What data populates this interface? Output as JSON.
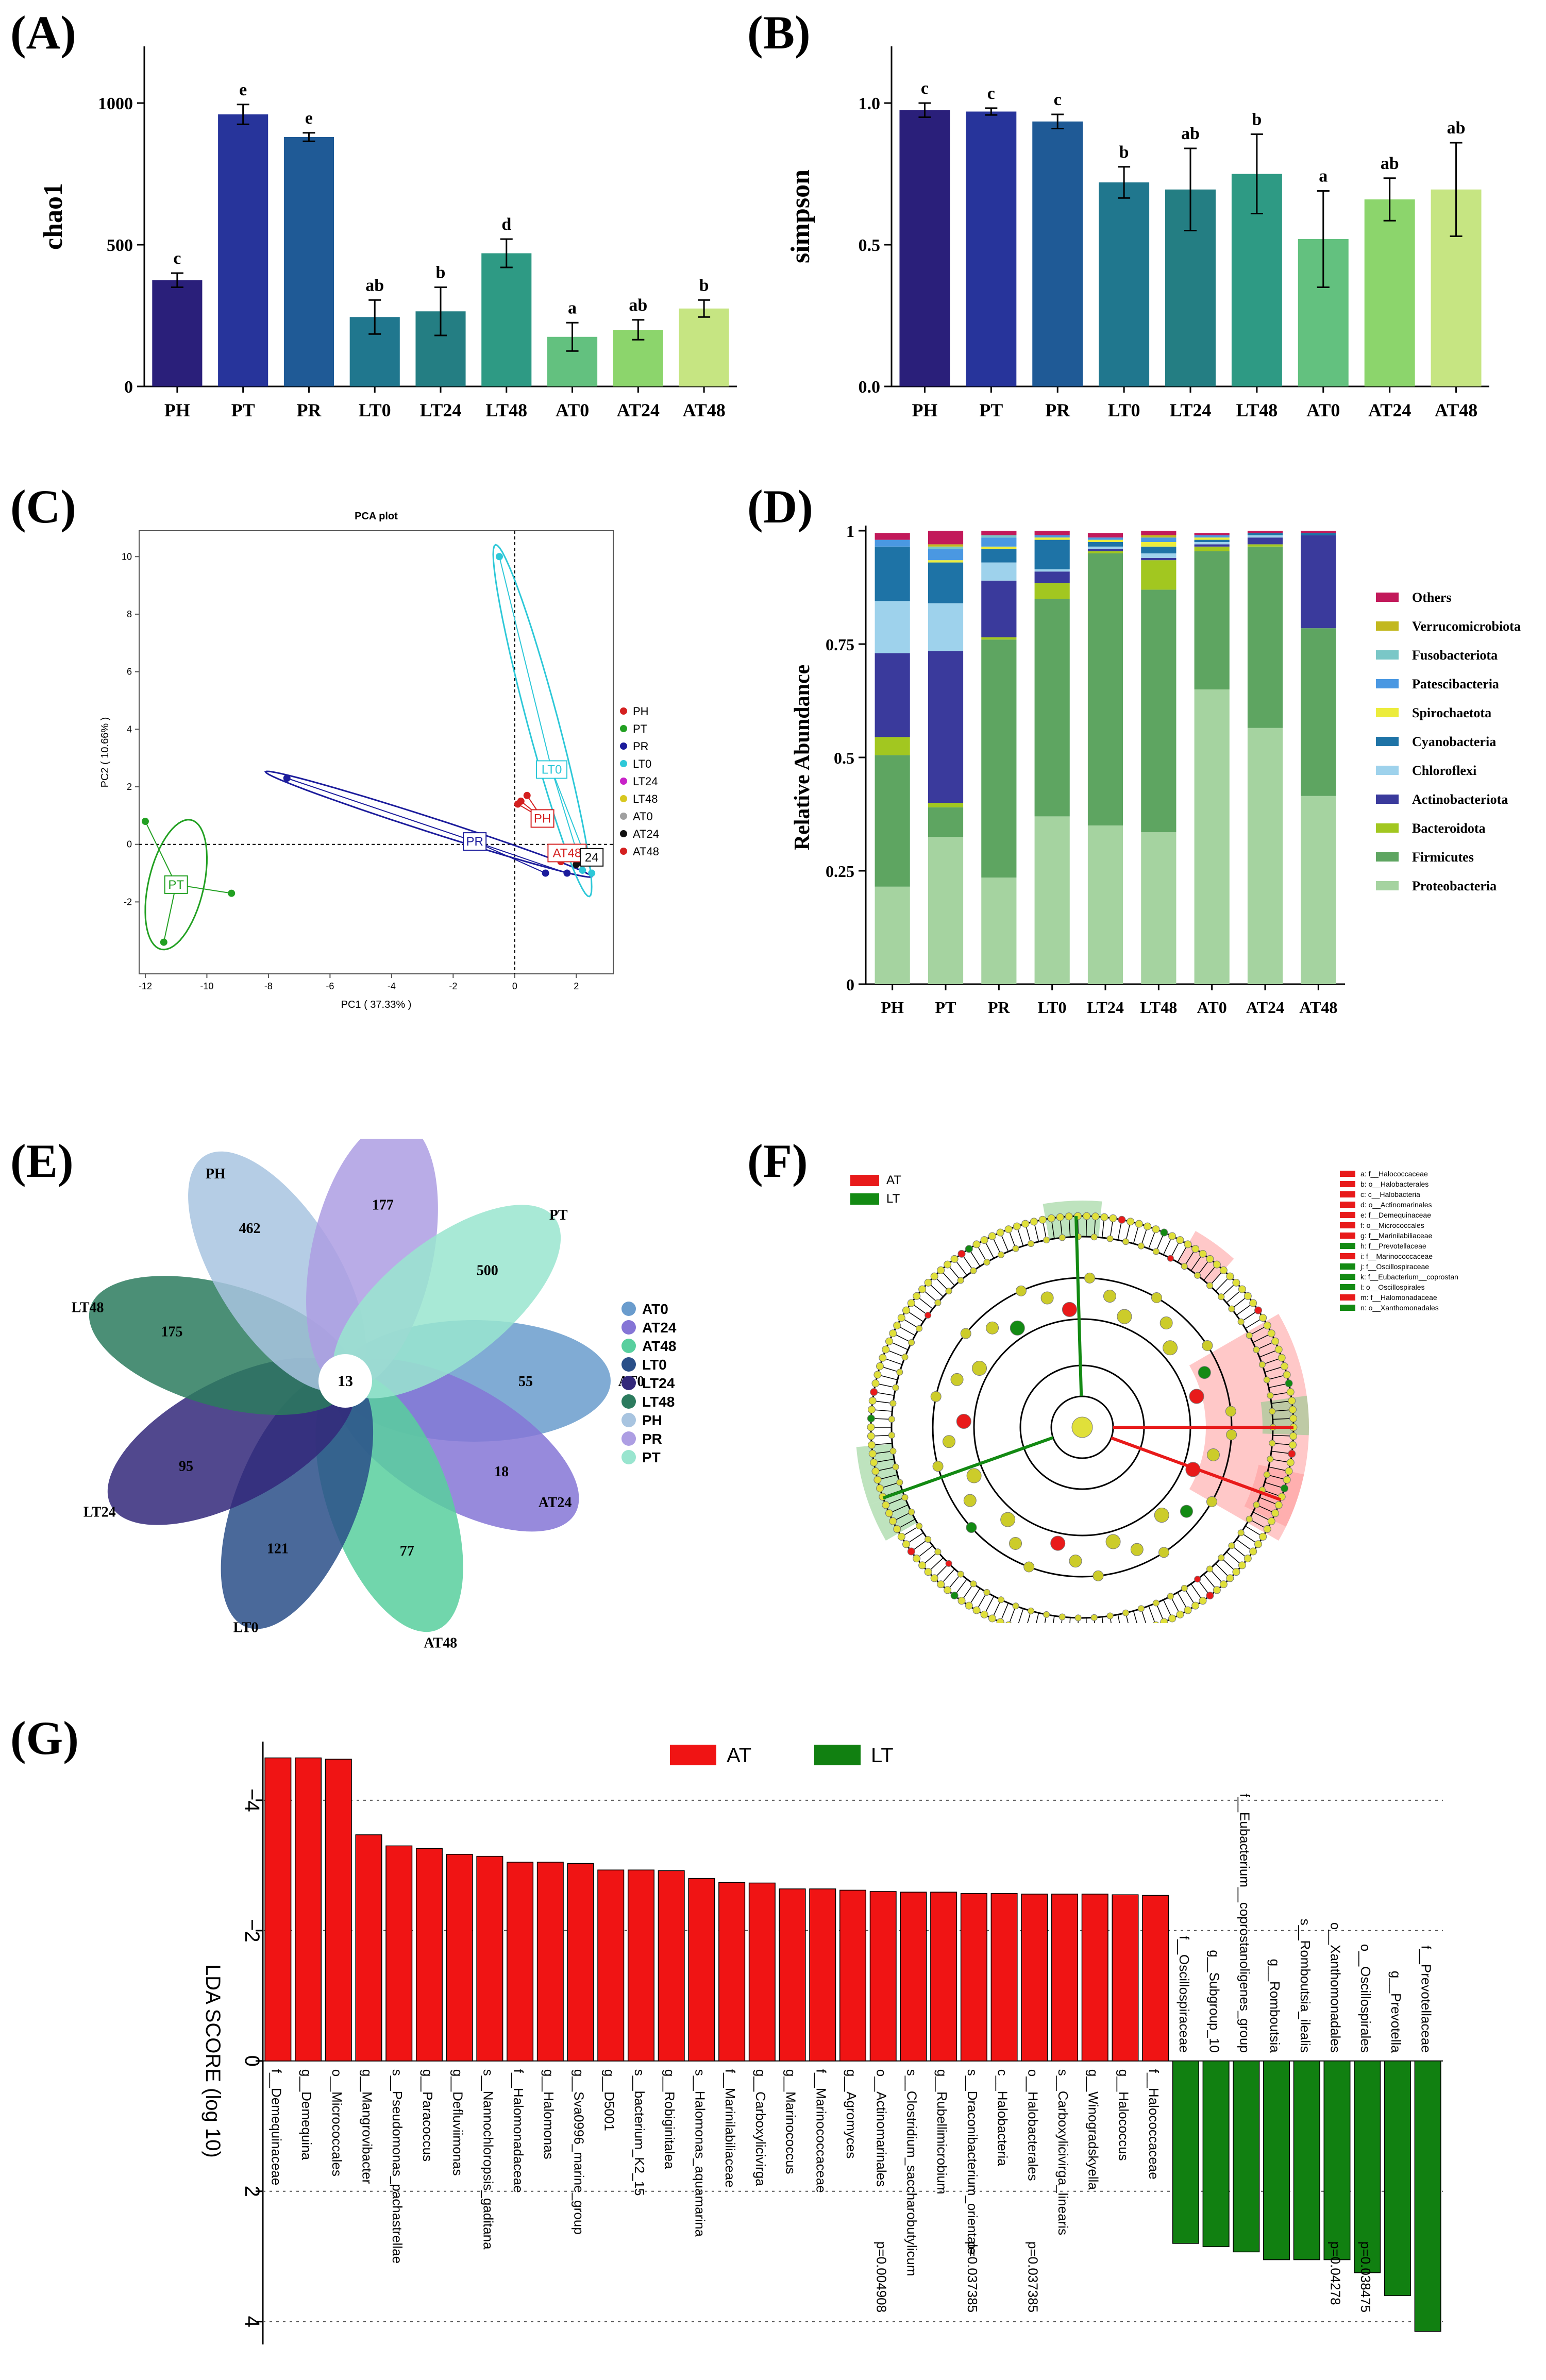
{
  "panel_labels": [
    "(A)",
    "(B)",
    "(C)",
    "(D)",
    "(E)",
    "(F)",
    "(G)"
  ],
  "chart_data": [
    {
      "id": "A",
      "type": "bar",
      "title": "",
      "xlabel": "",
      "ylabel": "chao1",
      "categories": [
        "PH",
        "PT",
        "PR",
        "LT0",
        "LT24",
        "LT48",
        "AT0",
        "AT24",
        "AT48"
      ],
      "values": [
        375,
        960,
        880,
        245,
        265,
        470,
        175,
        200,
        275
      ],
      "errors": [
        25,
        35,
        15,
        60,
        85,
        50,
        50,
        35,
        30
      ],
      "letters": [
        "c",
        "e",
        "e",
        "ab",
        "b",
        "d",
        "a",
        "ab",
        "b"
      ],
      "colors": [
        "#2a1f7a",
        "#27349b",
        "#1f5a96",
        "#20778e",
        "#247e83",
        "#2e9a84",
        "#63c17f",
        "#8cd56c",
        "#c6e582"
      ],
      "ylim": [
        0,
        1200
      ],
      "yticks": [
        0,
        500,
        1000
      ]
    },
    {
      "id": "B",
      "type": "bar",
      "title": "",
      "xlabel": "",
      "ylabel": "simpson",
      "categories": [
        "PH",
        "PT",
        "PR",
        "LT0",
        "LT24",
        "LT48",
        "AT0",
        "AT24",
        "AT48"
      ],
      "values": [
        0.975,
        0.97,
        0.935,
        0.72,
        0.695,
        0.75,
        0.52,
        0.66,
        0.695
      ],
      "errors": [
        0.025,
        0.012,
        0.025,
        0.055,
        0.145,
        0.14,
        0.17,
        0.075,
        0.165
      ],
      "letters": [
        "c",
        "c",
        "c",
        "b",
        "ab",
        "b",
        "a",
        "ab",
        "ab"
      ],
      "colors": [
        "#2a1f7a",
        "#27349b",
        "#1f5a96",
        "#20778e",
        "#247e83",
        "#2e9a84",
        "#63c17f",
        "#8cd56c",
        "#c6e582"
      ],
      "ylim": [
        0,
        1.2
      ],
      "yticks": [
        0.0,
        0.5,
        1.0
      ],
      "yticklabels": [
        "0.0",
        "0.5",
        "1.0"
      ]
    },
    {
      "id": "C",
      "type": "scatter",
      "title": "PCA plot",
      "xlabel": "PC1 ( 37.33% )",
      "ylabel": "PC2 ( 10.66% )",
      "xlim": [
        -12.2,
        3.2
      ],
      "ylim": [
        -4.5,
        10.9
      ],
      "xticks": [
        -12,
        -10,
        -8,
        -6,
        -4,
        -2,
        0,
        2
      ],
      "yticks": [
        -2,
        0,
        2,
        4,
        6,
        8,
        10
      ],
      "legend": [
        "PH",
        "PT",
        "PR",
        "LT0",
        "LT24",
        "LT48",
        "AT0",
        "AT24",
        "AT48"
      ],
      "legend_colors": [
        "#d42020",
        "#22a022",
        "#1c1c9c",
        "#2ec8d8",
        "#c822c8",
        "#d8c820",
        "#a0a0a0",
        "#111111",
        "#d42020"
      ],
      "groups": [
        {
          "name": "PT",
          "color": "#22a022",
          "centroid": [
            -11.0,
            -1.4
          ],
          "points": [
            [
              -12.0,
              0.8
            ],
            [
              -9.2,
              -1.7
            ],
            [
              -11.4,
              -3.4
            ]
          ],
          "ellipse": {
            "cx": -11.0,
            "cy": -1.4,
            "rx": 0.9,
            "ry": 2.3,
            "rot": -12
          }
        },
        {
          "name": "PR",
          "color": "#1c1c9c",
          "centroid": [
            -1.3,
            0.1
          ],
          "points": [
            [
              -7.4,
              2.3
            ],
            [
              1.0,
              -1.0
            ],
            [
              1.7,
              -1.0
            ]
          ],
          "ellipse": {
            "cx": -2.8,
            "cy": 0.7,
            "rx": 5.6,
            "ry": 0.25,
            "rot": -19
          }
        },
        {
          "name": "LT0",
          "color": "#2ec8d8",
          "centroid": [
            1.2,
            2.6
          ],
          "points": [
            [
              -0.5,
              10.0
            ],
            [
              2.2,
              -0.9
            ],
            [
              2.5,
              -1.0
            ]
          ],
          "ellipse": {
            "cx": 0.9,
            "cy": 4.3,
            "rx": 6.3,
            "ry": 0.5,
            "rot": -76
          }
        },
        {
          "name": "PH",
          "color": "#d42020",
          "centroid": [
            0.9,
            0.9
          ],
          "points": [
            [
              0.2,
              1.5
            ],
            [
              0.4,
              1.7
            ],
            [
              0.1,
              1.4
            ]
          ],
          "ellipse": null
        },
        {
          "name": "AT48",
          "color": "#d42020",
          "centroid": [
            1.7,
            -0.3
          ],
          "points": [
            [
              1.5,
              -0.6
            ],
            [
              1.8,
              -0.5
            ],
            [
              1.6,
              -0.4
            ]
          ],
          "ellipse": null
        },
        {
          "name": "AT24",
          "color": "#111111",
          "centroid": [
            2.1,
            -0.4
          ],
          "points": [
            [
              2.0,
              -0.7
            ],
            [
              2.2,
              -0.6
            ]
          ],
          "ellipse": null
        }
      ],
      "labeled_boxes": [
        "PT",
        "PR",
        "LT0",
        "PH",
        "AT48",
        "24"
      ]
    },
    {
      "id": "D",
      "type": "bar",
      "stacked": true,
      "ylabel": "Relative Abundance",
      "categories": [
        "PH",
        "PT",
        "PR",
        "LT0",
        "LT24",
        "LT48",
        "AT0",
        "AT24",
        "AT48"
      ],
      "ylim": [
        0,
        1
      ],
      "yticks": [
        0,
        0.25,
        0.5,
        0.75,
        1
      ],
      "yticklabels": [
        "0",
        "0.25",
        "0.5",
        "0.75",
        "1"
      ],
      "series": [
        {
          "name": "Proteobacteria",
          "color": "#a5d3a0",
          "values": [
            0.215,
            0.325,
            0.235,
            0.37,
            0.35,
            0.335,
            0.65,
            0.565,
            0.415
          ]
        },
        {
          "name": "Firmicutes",
          "color": "#5ea561",
          "values": [
            0.29,
            0.065,
            0.525,
            0.48,
            0.6,
            0.535,
            0.305,
            0.4,
            0.37
          ]
        },
        {
          "name": "Bacteroidota",
          "color": "#a2c720",
          "values": [
            0.04,
            0.01,
            0.005,
            0.035,
            0.005,
            0.065,
            0.01,
            0.005,
            0.0
          ]
        },
        {
          "name": "Actinobacteriota",
          "color": "#3a3a9c",
          "values": [
            0.185,
            0.335,
            0.125,
            0.025,
            0.005,
            0.005,
            0.005,
            0.015,
            0.205
          ]
        },
        {
          "name": "Chloroflexi",
          "color": "#9ed2ec",
          "values": [
            0.115,
            0.105,
            0.04,
            0.005,
            0.005,
            0.01,
            0.005,
            0.005,
            0.0
          ]
        },
        {
          "name": "Cyanobacteria",
          "color": "#1e73a6",
          "values": [
            0.12,
            0.09,
            0.03,
            0.065,
            0.01,
            0.015,
            0.005,
            0.005,
            0.005
          ]
        },
        {
          "name": "Spirochaetota",
          "color": "#ecec3c",
          "values": [
            0.0,
            0.005,
            0.005,
            0.005,
            0.005,
            0.01,
            0.005,
            0.0,
            0.0
          ]
        },
        {
          "name": "Patescibacteria",
          "color": "#4a98e2",
          "values": [
            0.015,
            0.025,
            0.02,
            0.005,
            0.005,
            0.01,
            0.005,
            0.0,
            0.0
          ]
        },
        {
          "name": "Fusobacteriota",
          "color": "#7ac7c7",
          "values": [
            0.0,
            0.005,
            0.005,
            0.0,
            0.0,
            0.0,
            0.0,
            0.0,
            0.0
          ]
        },
        {
          "name": "Verrucomicrobiota",
          "color": "#c2b81e",
          "values": [
            0.0,
            0.005,
            0.0,
            0.0,
            0.0,
            0.005,
            0.0,
            0.0,
            0.0
          ]
        },
        {
          "name": "Others",
          "color": "#c2195a",
          "values": [
            0.015,
            0.03,
            0.01,
            0.01,
            0.01,
            0.01,
            0.005,
            0.005,
            0.005
          ]
        }
      ]
    },
    {
      "id": "E",
      "type": "venn-flower",
      "center_value": "13",
      "petals": [
        {
          "name": "AT0",
          "value": "55",
          "color": "#6a9ccd"
        },
        {
          "name": "AT24",
          "value": "18",
          "color": "#8575d6"
        },
        {
          "name": "AT48",
          "value": "77",
          "color": "#58cf9e"
        },
        {
          "name": "LT0",
          "value": "121",
          "color": "#2a4f88"
        },
        {
          "name": "LT24",
          "value": "95",
          "color": "#33287a"
        },
        {
          "name": "LT48",
          "value": "175",
          "color": "#2c7b5e"
        },
        {
          "name": "PH",
          "value": "462",
          "color": "#a8c4e0"
        },
        {
          "name": "PR",
          "value": "177",
          "color": "#ad9ee3"
        },
        {
          "name": "PT",
          "value": "500",
          "color": "#99e5cf"
        }
      ],
      "legend": [
        "AT0",
        "AT24",
        "AT48",
        "LT0",
        "LT24",
        "LT48",
        "PH",
        "PR",
        "PT"
      ]
    },
    {
      "id": "F",
      "type": "cladogram",
      "groups": [
        {
          "name": "AT",
          "color": "#e81a1a"
        },
        {
          "name": "LT",
          "color": "#138a13"
        }
      ],
      "legend": [
        {
          "text": "a: f__Halococcaceae",
          "group": "AT"
        },
        {
          "text": "b: o__Halobacterales",
          "group": "AT"
        },
        {
          "text": "c: c__Halobacteria",
          "group": "AT"
        },
        {
          "text": "d: o__Actinomarinales",
          "group": "AT"
        },
        {
          "text": "e: f__Demequinaceae",
          "group": "AT"
        },
        {
          "text": "f: o__Micrococcales",
          "group": "AT"
        },
        {
          "text": "g: f__Marinilabiliaceae",
          "group": "AT"
        },
        {
          "text": "h: f__Prevotellaceae",
          "group": "LT"
        },
        {
          "text": "i: f__Marinococcaceae",
          "group": "AT"
        },
        {
          "text": "j: f__Oscillospiraceae",
          "group": "LT"
        },
        {
          "text": "k: f__Eubacterium__coprostan",
          "group": "LT"
        },
        {
          "text": "l: o__Oscillospirales",
          "group": "LT"
        },
        {
          "text": "m: f__Halomonadaceae",
          "group": "AT"
        },
        {
          "text": "n: o__Xanthomonadales",
          "group": "LT"
        }
      ]
    },
    {
      "id": "G",
      "type": "bar",
      "orientation": "vertical-diverging",
      "ylabel": "LDA SCORE (log 10)",
      "ylim": [
        -4.9,
        4.35
      ],
      "yticks": [
        -4,
        -2,
        0,
        2,
        4
      ],
      "yticklabels": [
        "−4",
        "−2",
        "0",
        "2",
        "4"
      ],
      "legend": [
        {
          "name": "AT",
          "color": "#f01414"
        },
        {
          "name": "LT",
          "color": "#118011"
        }
      ],
      "series": [
        {
          "name": "AT",
          "color": "#f01414",
          "categories": [
            "f__Demequinaceae",
            "g__Demequina",
            "o__Micrococcales",
            "g__Mangrovibacter",
            "s__Pseudomonas_pachastrellae",
            "g__Paracoccus",
            "g__Defluviimonas",
            "s__Nannochloropsis_gaditana",
            "f__Halomonadaceae",
            "g__Halomonas",
            "g__Sva0996_marine_group",
            "g__D5001",
            "s__bacterium_K2_15",
            "g__Robiginitalea",
            "s__Halomonas_aquamarina",
            "f__Marinilabiliaceae",
            "g__Carboxylicivirga",
            "g__Marinococcus",
            "f__Marinococcaceae",
            "g__Agromyces",
            "o__Actinomarinales",
            "s__Clostridium_saccharobutylicum",
            "g__Rubellimicrobium",
            "s__Draconibacterium_orientale",
            "c__Halobacteria",
            "o__Halobacterales",
            "s__Carboxylicivirga_linearis",
            "g__Winogradskyella",
            "g__Halococcus",
            "f__Halococcaceae"
          ],
          "values": [
            -4.65,
            -4.65,
            -4.63,
            -3.47,
            -3.3,
            -3.26,
            -3.17,
            -3.14,
            -3.05,
            -3.05,
            -3.03,
            -2.93,
            -2.93,
            -2.92,
            -2.8,
            -2.74,
            -2.73,
            -2.64,
            -2.64,
            -2.62,
            -2.6,
            -2.59,
            -2.59,
            -2.57,
            -2.57,
            -2.56,
            -2.56,
            -2.56,
            -2.55,
            -2.54
          ],
          "pvalues": [
            "",
            "",
            "",
            "",
            "",
            "",
            "",
            "",
            "",
            "",
            "",
            "",
            "",
            "",
            "",
            "",
            "",
            "",
            "",
            "",
            "p=0.004908",
            "",
            "",
            "p=0.037385",
            "",
            "p=0.037385",
            "",
            "",
            "",
            ""
          ]
        },
        {
          "name": "LT",
          "color": "#118011",
          "categories": [
            "f__Oscillospiraceae",
            "g__Subgroup_10",
            "f__Eubacterium__coprostanoligenes_group",
            "g__Romboutsia",
            "s__Romboutsia_ilealis",
            "o__Xanthomonadales",
            "o__Oscillospirales",
            "g__Prevotella",
            "f__Prevotellaceae"
          ],
          "values": [
            2.8,
            2.85,
            2.93,
            3.05,
            3.05,
            3.05,
            3.25,
            3.6,
            4.15
          ],
          "pvalues": [
            "",
            "",
            "",
            "",
            "",
            "p=0.04278",
            "p=0.038475",
            "",
            ""
          ]
        }
      ]
    }
  ]
}
